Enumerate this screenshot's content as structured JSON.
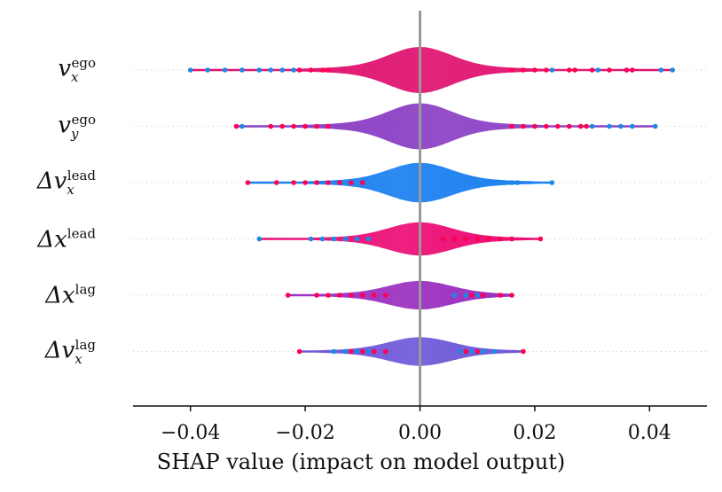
{
  "chart_data": {
    "type": "violin",
    "xlabel": "SHAP value (impact on model output)",
    "xlim": [
      -0.05,
      0.05
    ],
    "xticks": [
      -0.04,
      -0.02,
      0.0,
      0.02,
      0.04
    ],
    "xtick_labels": [
      "−0.04",
      "−0.02",
      "0.00",
      "0.02",
      "0.04"
    ],
    "colors": {
      "low": "#1e88e5",
      "high": "#ff0052",
      "zero_line": "#999999"
    },
    "features": [
      {
        "symbol": "v",
        "superscript": "ego",
        "subscript": "x",
        "tone": "#e0116f",
        "halfwidth_scale": 1.0,
        "min": -0.04,
        "max": 0.044,
        "blue_points": [
          -0.04,
          -0.037,
          -0.034,
          -0.031,
          -0.028,
          -0.026,
          -0.024,
          -0.022,
          0.023,
          0.031,
          0.036,
          0.042,
          0.044
        ],
        "red_points": [
          -0.021,
          -0.019,
          -0.017,
          -0.016,
          0.016,
          0.018,
          0.02,
          0.022,
          0.026,
          0.027,
          0.03,
          0.033,
          0.036,
          0.037
        ]
      },
      {
        "symbol": "v",
        "superscript": "ego",
        "subscript": "y",
        "tone": "#8a3fc4",
        "halfwidth_scale": 1.0,
        "min": -0.032,
        "max": 0.041,
        "blue_points": [
          -0.031,
          0.03,
          0.033,
          0.035,
          0.037,
          0.041
        ],
        "red_points": [
          -0.032,
          -0.026,
          -0.024,
          -0.022,
          -0.02,
          -0.018,
          -0.016,
          0.016,
          0.018,
          0.02,
          0.022,
          0.024,
          0.026,
          0.028,
          0.029
        ]
      },
      {
        "symbol": "Δv",
        "superscript": "lead",
        "subscript": "x",
        "tone": "#1a7ff0",
        "halfwidth_scale": 0.86,
        "min": -0.03,
        "max": 0.023,
        "blue_points": [
          0.01,
          0.012,
          0.014,
          0.016,
          0.017,
          0.023
        ],
        "red_points": [
          -0.03,
          -0.025,
          -0.022,
          -0.02,
          -0.018,
          -0.016,
          -0.014,
          -0.012,
          -0.01
        ]
      },
      {
        "symbol": "Δx",
        "superscript": "lead",
        "subscript": "",
        "tone": "#ec0d74",
        "halfwidth_scale": 0.72,
        "min": -0.028,
        "max": 0.021,
        "blue_points": [
          -0.028,
          -0.019,
          -0.017,
          -0.015,
          -0.013,
          -0.011,
          -0.009,
          0.014,
          0.016
        ],
        "red_points": [
          0.004,
          0.006,
          0.008,
          0.01,
          0.012,
          0.014,
          0.016,
          0.021
        ]
      },
      {
        "symbol": "Δx",
        "superscript": "lag",
        "subscript": "",
        "tone": "#9a2fc0",
        "halfwidth_scale": 0.62,
        "min": -0.023,
        "max": 0.016,
        "blue_points": [
          0.006,
          0.008,
          0.01
        ],
        "red_points": [
          -0.023,
          -0.018,
          -0.016,
          -0.014,
          -0.012,
          -0.01,
          -0.008,
          -0.006,
          0.009,
          0.011,
          0.014,
          0.016
        ]
      },
      {
        "symbol": "Δv",
        "superscript": "lag",
        "subscript": "x",
        "tone": "#6f58d8",
        "halfwidth_scale": 0.62,
        "min": -0.021,
        "max": 0.018,
        "blue_points": [
          -0.015,
          -0.013,
          -0.011,
          -0.009,
          0.007,
          0.009,
          0.011,
          0.013
        ],
        "red_points": [
          -0.021,
          -0.012,
          -0.01,
          -0.008,
          -0.006,
          0.008,
          0.01,
          0.018
        ]
      }
    ]
  }
}
